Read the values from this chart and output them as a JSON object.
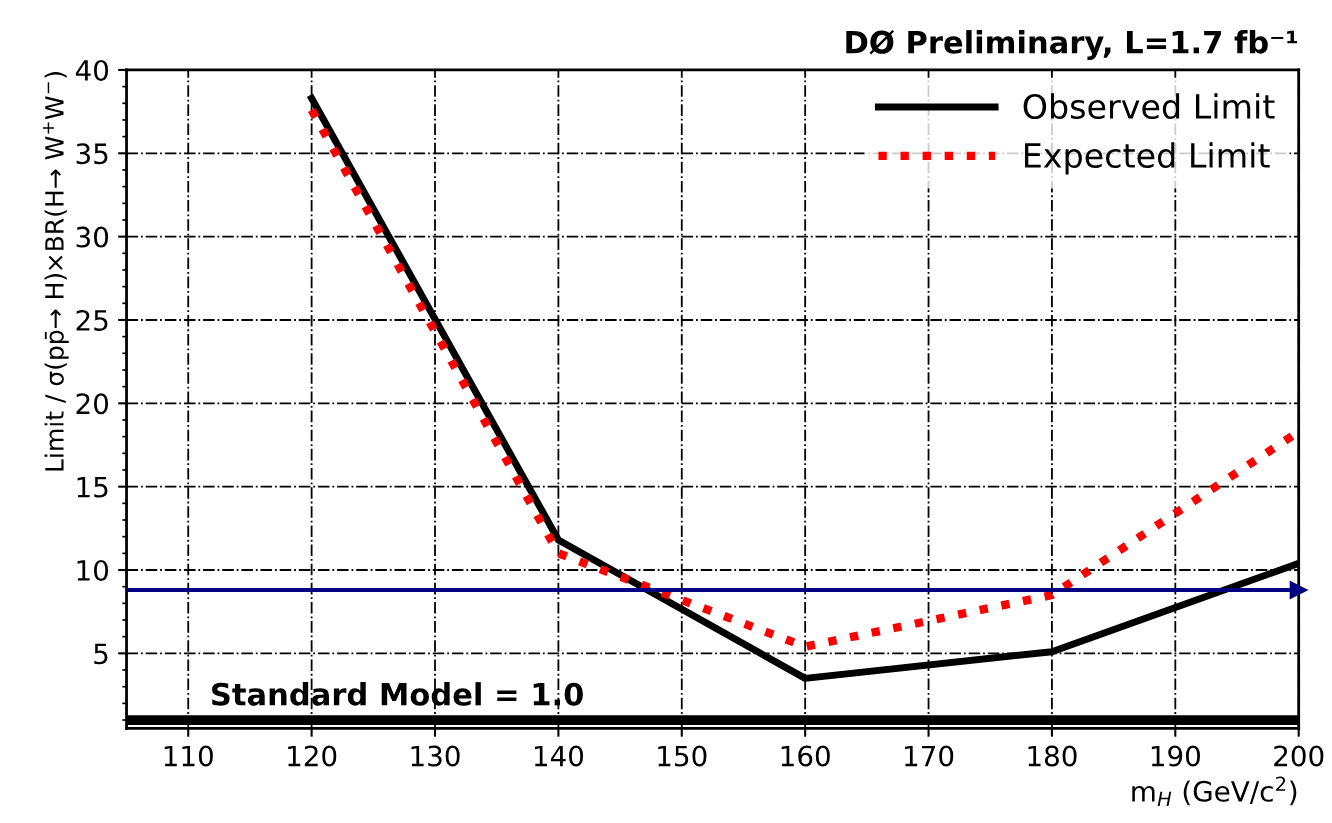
{
  "chart_data": {
    "type": "line",
    "title": "DØ Preliminary, L=1.7 fb⁻¹",
    "xlabel": "m$_{H}$ (GeV/c$^{2}$)",
    "ylabel": "Limit / σ(pp̄→ H)×BR(H→ W$^{+}$W$^{−}$)",
    "x": [
      120,
      140,
      160,
      180,
      200
    ],
    "series": [
      {
        "name": "Observed Limit",
        "color": "#000000",
        "line_style": "solid",
        "values": [
          38.3,
          11.8,
          3.5,
          5.1,
          10.4
        ]
      },
      {
        "name": "Expected Limit",
        "color": "#ff0000",
        "line_style": "dotted",
        "values": [
          37.6,
          11.0,
          5.4,
          8.5,
          18.3
        ]
      }
    ],
    "xlim": [
      105,
      200
    ],
    "ylim": [
      0.5,
      40
    ],
    "xticks": [
      110,
      120,
      130,
      140,
      150,
      160,
      170,
      180,
      190,
      200
    ],
    "yticks": [
      5,
      10,
      15,
      20,
      25,
      30,
      35,
      40
    ],
    "ref_lines": [
      {
        "axis": "y",
        "value": 1.0,
        "label": "Standard Model = 1.0",
        "color": "#000000"
      },
      {
        "axis": "y",
        "value": 8.8,
        "color": "#000080"
      }
    ],
    "grid": true,
    "legend": "top right",
    "marker": "none"
  }
}
